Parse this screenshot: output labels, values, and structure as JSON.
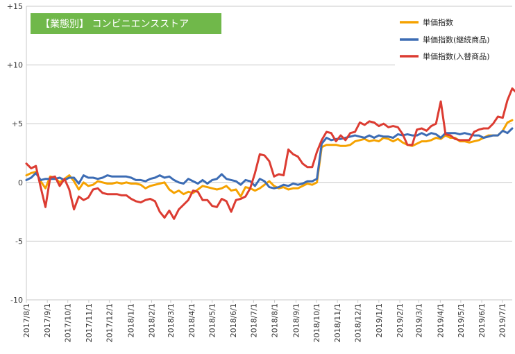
{
  "chart_data": {
    "type": "line",
    "title": "【業態別】 コンビニエンスストア",
    "title_bg": "#70b84a",
    "xlabel": "",
    "ylabel": "",
    "ylim": [
      -10,
      15
    ],
    "yticks": [
      {
        "value": 15,
        "label": "+15"
      },
      {
        "value": 10,
        "label": "+10"
      },
      {
        "value": 5,
        "label": "+5"
      },
      {
        "value": 0,
        "label": "0"
      },
      {
        "value": -5,
        "label": "-5"
      },
      {
        "value": -10,
        "label": "-10"
      }
    ],
    "grid": "horizontal",
    "legend_position": "top-right",
    "x_ticks": [
      {
        "label": "2017/8/1",
        "index": 0
      },
      {
        "label": "2017/9/1",
        "index": 4.4
      },
      {
        "label": "2017/10/1",
        "index": 8.7
      },
      {
        "label": "2017/11/1",
        "index": 13.1
      },
      {
        "label": "2017/12/1",
        "index": 17.4
      },
      {
        "label": "2018/1/1",
        "index": 21.9
      },
      {
        "label": "2018/2/1",
        "index": 26.3
      },
      {
        "label": "2018/3/1",
        "index": 30.3
      },
      {
        "label": "2018/4/1",
        "index": 34.7
      },
      {
        "label": "2018/5/1",
        "index": 39.0
      },
      {
        "label": "2018/6/1",
        "index": 43.4
      },
      {
        "label": "2018/7/1",
        "index": 47.7
      },
      {
        "label": "2018/8/1",
        "index": 52.1
      },
      {
        "label": "2018/9/1",
        "index": 56.6
      },
      {
        "label": "2018/10/1",
        "index": 60.9
      },
      {
        "label": "2018/11/1",
        "index": 65.3
      },
      {
        "label": "2018/12/1",
        "index": 69.6
      },
      {
        "label": "2019/1/1",
        "index": 74.0
      },
      {
        "label": "2019/2/1",
        "index": 78.4
      },
      {
        "label": "2019/3/1",
        "index": 82.4
      },
      {
        "label": "2019/4/1",
        "index": 86.9
      },
      {
        "label": "2019/5/1",
        "index": 91.2
      },
      {
        "label": "2019/6/1",
        "index": 95.6
      },
      {
        "label": "2019/7/1",
        "index": 99.9
      }
    ],
    "series": [
      {
        "name": "単価指数",
        "color": "#f5a200",
        "values": [
          0.6,
          0.8,
          0.9,
          0.1,
          -0.5,
          0.5,
          0.4,
          0.0,
          0.3,
          0.6,
          0.1,
          -0.6,
          0.0,
          -0.3,
          -0.2,
          0.1,
          0.0,
          -0.1,
          -0.1,
          0.0,
          -0.1,
          0.0,
          -0.1,
          -0.1,
          -0.2,
          -0.5,
          -0.3,
          -0.2,
          -0.1,
          0.0,
          -0.6,
          -0.9,
          -0.7,
          -1.0,
          -0.8,
          -0.9,
          -0.6,
          -0.3,
          -0.4,
          -0.5,
          -0.6,
          -0.5,
          -0.3,
          -0.7,
          -0.6,
          -1.2,
          -0.4,
          -0.5,
          -0.7,
          -0.5,
          -0.2,
          0.1,
          -0.3,
          -0.5,
          -0.4,
          -0.6,
          -0.5,
          -0.5,
          -0.3,
          -0.1,
          -0.2,
          0.0,
          3.0,
          3.2,
          3.2,
          3.2,
          3.1,
          3.1,
          3.2,
          3.5,
          3.6,
          3.7,
          3.5,
          3.6,
          3.5,
          3.8,
          3.7,
          3.5,
          3.7,
          3.4,
          3.2,
          3.1,
          3.3,
          3.5,
          3.5,
          3.6,
          3.8,
          3.7,
          4.0,
          3.8,
          3.8,
          3.5,
          3.5,
          3.4,
          3.5,
          3.6,
          3.8,
          4.0,
          4.0,
          4.0,
          4.4,
          5.1,
          5.3
        ]
      },
      {
        "name": "単価指数(継続商品)",
        "color": "#3c6cb4",
        "values": [
          0.2,
          0.4,
          0.8,
          0.2,
          0.3,
          0.3,
          0.3,
          0.4,
          0.2,
          0.4,
          0.4,
          -0.1,
          0.6,
          0.4,
          0.4,
          0.3,
          0.4,
          0.6,
          0.5,
          0.5,
          0.5,
          0.5,
          0.4,
          0.2,
          0.2,
          0.1,
          0.3,
          0.4,
          0.6,
          0.4,
          0.5,
          0.2,
          0.0,
          -0.1,
          0.3,
          0.1,
          -0.1,
          0.2,
          -0.1,
          0.2,
          0.3,
          0.7,
          0.3,
          0.2,
          0.1,
          -0.2,
          0.2,
          0.1,
          -0.3,
          0.3,
          0.1,
          -0.4,
          -0.5,
          -0.4,
          -0.2,
          -0.3,
          -0.1,
          -0.2,
          -0.1,
          0.1,
          0.1,
          0.3,
          3.3,
          3.8,
          3.6,
          3.7,
          3.7,
          3.8,
          3.9,
          4.0,
          3.9,
          3.8,
          4.0,
          3.8,
          4.0,
          3.9,
          3.9,
          3.8,
          4.1,
          4.0,
          4.1,
          4.0,
          4.0,
          4.2,
          4.0,
          4.2,
          4.1,
          3.8,
          4.2,
          4.2,
          4.2,
          4.1,
          4.2,
          4.1,
          4.0,
          4.0,
          3.8,
          3.9,
          4.0,
          4.0,
          4.4,
          4.2,
          4.6
        ]
      },
      {
        "name": "単価指数(入替商品)",
        "color": "#dc3c32",
        "values": [
          1.6,
          1.2,
          1.4,
          -0.4,
          -2.1,
          0.4,
          0.5,
          -0.3,
          0.3,
          -0.6,
          -2.3,
          -1.2,
          -1.5,
          -1.3,
          -0.6,
          -0.5,
          -0.9,
          -1.0,
          -1.0,
          -1.0,
          -1.1,
          -1.1,
          -1.4,
          -1.6,
          -1.7,
          -1.5,
          -1.4,
          -1.6,
          -2.5,
          -3.0,
          -2.4,
          -3.1,
          -2.3,
          -1.9,
          -1.5,
          -0.7,
          -0.8,
          -1.5,
          -1.5,
          -2.0,
          -2.1,
          -1.4,
          -1.6,
          -2.5,
          -1.5,
          -1.4,
          -1.2,
          -0.5,
          0.8,
          2.4,
          2.3,
          1.8,
          0.5,
          0.7,
          0.6,
          2.8,
          2.4,
          2.2,
          1.6,
          1.3,
          1.3,
          2.6,
          3.6,
          4.3,
          4.2,
          3.5,
          4.0,
          3.6,
          4.2,
          4.3,
          5.1,
          4.9,
          5.2,
          5.1,
          4.8,
          5.0,
          4.7,
          4.8,
          4.7,
          4.1,
          3.2,
          3.2,
          4.5,
          4.6,
          4.4,
          4.8,
          5.0,
          6.9,
          4.1,
          4.0,
          3.7,
          3.6,
          3.6,
          3.6,
          4.3,
          4.5,
          4.6,
          4.6,
          5.0,
          5.6,
          5.5,
          7.0,
          8.0,
          7.6
        ]
      }
    ]
  }
}
